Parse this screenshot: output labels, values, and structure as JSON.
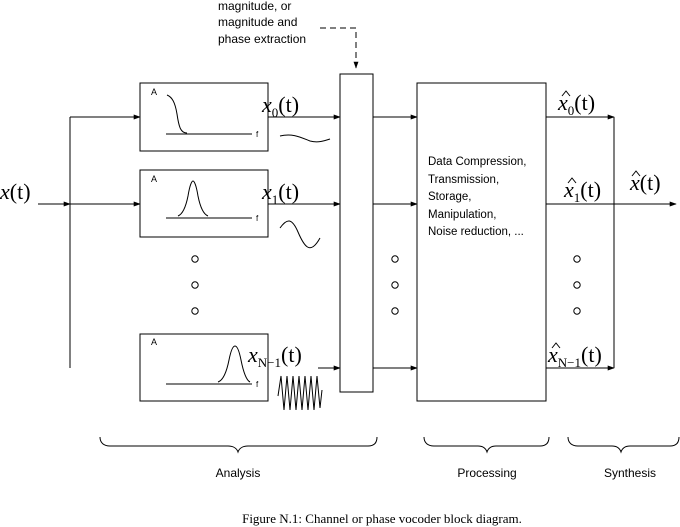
{
  "annotation": {
    "lines": [
      "magnitude, or",
      "magnitude and",
      "phase extraction"
    ]
  },
  "input_signal": {
    "base": "x",
    "arg": "(t)"
  },
  "filters": [
    {
      "axis_a": "A",
      "axis_f": "f",
      "out_base": "x",
      "out_sub": "0",
      "out_arg": "(t)"
    },
    {
      "axis_a": "A",
      "axis_f": "f",
      "out_base": "x",
      "out_sub": "1",
      "out_arg": "(t)"
    },
    {
      "axis_a": "A",
      "axis_f": "f",
      "out_base": "x",
      "out_sub": "N−1",
      "out_arg": "(t)"
    }
  ],
  "processing_box": {
    "lines": [
      "Data Compression,",
      "Transmission,",
      "Storage,",
      "Manipulation,",
      "Noise reduction, ..."
    ]
  },
  "outputs": [
    {
      "base": "x",
      "sub": "0",
      "arg": "(t)"
    },
    {
      "base": "x",
      "sub": "1",
      "arg": "(t)"
    },
    {
      "base": "x",
      "sub": "N−1",
      "arg": "(t)"
    }
  ],
  "final_output": {
    "base": "x",
    "arg": "(t)"
  },
  "stage_labels": {
    "analysis": "Analysis",
    "processing": "Processing",
    "synthesis": "Synthesis"
  },
  "caption": "Figure N.1: Channel or phase vocoder block diagram."
}
